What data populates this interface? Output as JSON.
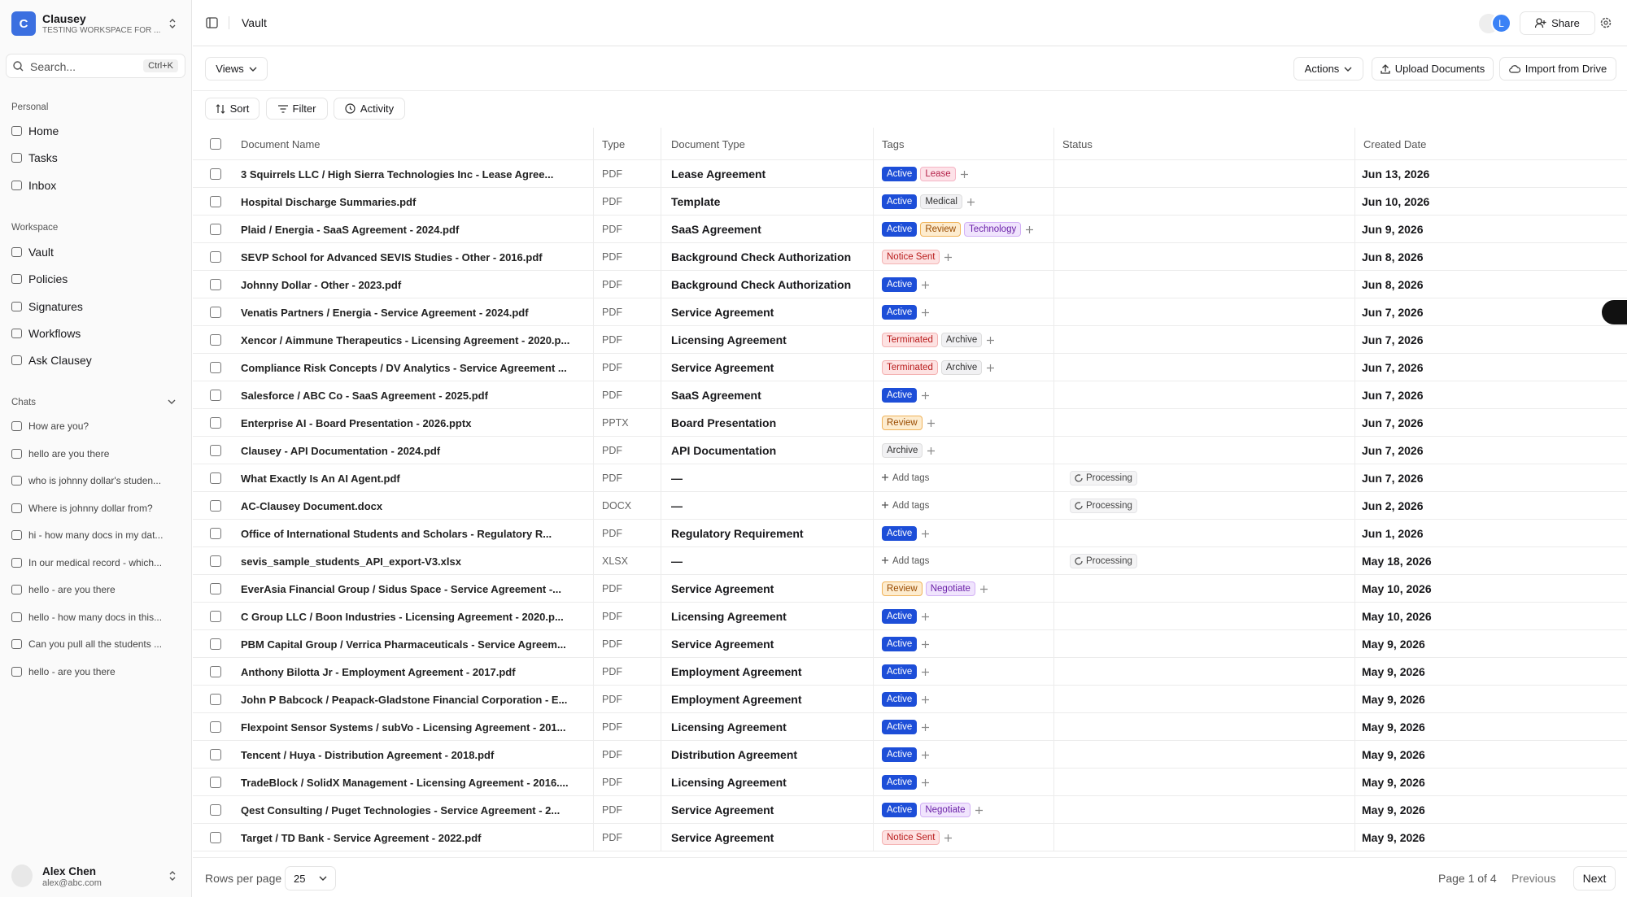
{
  "sidebar": {
    "logo_letter": "C",
    "workspace_name": "Clausey",
    "workspace_subtitle": "TESTING WORKSPACE FOR ...",
    "search": "Search...",
    "shortcut": "Ctrl+K",
    "personal": {
      "title": "Personal",
      "items": [
        "Home",
        "Tasks",
        "Inbox"
      ]
    },
    "workspace": {
      "title": "Workspace",
      "items": [
        "Vault",
        "Policies",
        "Signatures",
        "Workflows",
        "Ask Clausey"
      ]
    },
    "chats": {
      "title": "Chats",
      "items": [
        "How are you?",
        "hello are you there",
        "who is johnny dollar's studen...",
        "Where is johnny dollar from?",
        "hi - how many docs in my dat...",
        "In our medical record - which...",
        "hello - are you there",
        "hello - how many docs in this...",
        "Can you pull all the students ...",
        "hello - are you there"
      ]
    },
    "user": {
      "name": "Alex Chen",
      "email": "alex@abc.com"
    }
  },
  "header": {
    "breadcrumb": "Vault",
    "avatar_letter": "L",
    "share": "Share"
  },
  "toolbar": {
    "views": "Views",
    "actions": "Actions",
    "upload": "Upload Documents",
    "import": "Import from Drive",
    "sort": "Sort",
    "filter": "Filter",
    "activity": "Activity"
  },
  "table": {
    "columns": [
      "Document Name",
      "Type",
      "Document Type",
      "Tags",
      "Status",
      "Created Date"
    ],
    "rows": [
      {
        "name": "3 Squirrels LLC / High Sierra Technologies Inc - Lease Agree...",
        "type": "PDF",
        "doc_type": "Lease Agreement",
        "tags": [
          {
            "label": "Active",
            "tone": "blue"
          },
          {
            "label": "Lease",
            "tone": "pink"
          }
        ],
        "date": "Jun 13, 2026"
      },
      {
        "name": "Hospital Discharge Summaries.pdf",
        "type": "PDF",
        "doc_type": "Template",
        "tags": [
          {
            "label": "Active",
            "tone": "blue"
          },
          {
            "label": "Medical",
            "tone": "gray"
          }
        ],
        "date": "Jun 10, 2026"
      },
      {
        "name": "Plaid / Energia - SaaS Agreement - 2024.pdf",
        "type": "PDF",
        "doc_type": "SaaS Agreement",
        "tags": [
          {
            "label": "Active",
            "tone": "blue"
          },
          {
            "label": "Review",
            "tone": "orange"
          },
          {
            "label": "Technology",
            "tone": "purple"
          }
        ],
        "date": "Jun 9, 2026"
      },
      {
        "name": "SEVP School for Advanced SEVIS Studies - Other - 2016.pdf",
        "type": "PDF",
        "doc_type": "Background Check Authorization",
        "tags": [
          {
            "label": "Notice Sent",
            "tone": "red"
          }
        ],
        "date": "Jun 8, 2026"
      },
      {
        "name": "Johnny Dollar - Other - 2023.pdf",
        "type": "PDF",
        "doc_type": "Background Check Authorization",
        "tags": [
          {
            "label": "Active",
            "tone": "blue"
          }
        ],
        "date": "Jun 8, 2026"
      },
      {
        "name": "Venatis Partners / Energia - Service Agreement - 2024.pdf",
        "type": "PDF",
        "doc_type": "Service Agreement",
        "tags": [
          {
            "label": "Active",
            "tone": "blue"
          }
        ],
        "date": "Jun 7, 2026"
      },
      {
        "name": "Xencor / Aimmune Therapeutics - Licensing Agreement - 2020.p...",
        "type": "PDF",
        "doc_type": "Licensing Agreement",
        "tags": [
          {
            "label": "Terminated",
            "tone": "red"
          },
          {
            "label": "Archive",
            "tone": "gray"
          }
        ],
        "date": "Jun 7, 2026"
      },
      {
        "name": "Compliance Risk Concepts / DV Analytics - Service Agreement ...",
        "type": "PDF",
        "doc_type": "Service Agreement",
        "tags": [
          {
            "label": "Terminated",
            "tone": "red"
          },
          {
            "label": "Archive",
            "tone": "gray"
          }
        ],
        "date": "Jun 7, 2026"
      },
      {
        "name": "Salesforce / ABC Co - SaaS Agreement - 2025.pdf",
        "type": "PDF",
        "doc_type": "SaaS Agreement",
        "tags": [
          {
            "label": "Active",
            "tone": "blue"
          }
        ],
        "date": "Jun 7, 2026"
      },
      {
        "name": "Enterprise AI - Board Presentation - 2026.pptx",
        "type": "PPTX",
        "doc_type": "Board Presentation",
        "tags": [
          {
            "label": "Review",
            "tone": "orange"
          }
        ],
        "date": "Jun 7, 2026"
      },
      {
        "name": "Clausey - API Documentation - 2024.pdf",
        "type": "PDF",
        "doc_type": "API Documentation",
        "tags": [
          {
            "label": "Archive",
            "tone": "gray"
          }
        ],
        "date": "Jun 7, 2026"
      },
      {
        "name": "What Exactly Is An AI Agent.pdf",
        "type": "PDF",
        "doc_type": "—",
        "tags": [],
        "add_tags": "Add tags",
        "status": "Processing",
        "date": "Jun 7, 2026"
      },
      {
        "name": "AC-Clausey Document.docx",
        "type": "DOCX",
        "doc_type": "—",
        "tags": [],
        "add_tags": "Add tags",
        "status": "Processing",
        "date": "Jun 2, 2026"
      },
      {
        "name": "Office of International Students and Scholars - Regulatory R...",
        "type": "PDF",
        "doc_type": "Regulatory Requirement",
        "tags": [
          {
            "label": "Active",
            "tone": "blue"
          }
        ],
        "date": "Jun 1, 2026"
      },
      {
        "name": "sevis_sample_students_API_export-V3.xlsx",
        "type": "XLSX",
        "doc_type": "—",
        "tags": [],
        "add_tags": "Add tags",
        "status": "Processing",
        "date": "May 18, 2026"
      },
      {
        "name": "EverAsia Financial Group / Sidus Space - Service Agreement -...",
        "type": "PDF",
        "doc_type": "Service Agreement",
        "tags": [
          {
            "label": "Review",
            "tone": "orange"
          },
          {
            "label": "Negotiate",
            "tone": "purple"
          }
        ],
        "date": "May 10, 2026"
      },
      {
        "name": "C Group LLC / Boon Industries - Licensing Agreement - 2020.p...",
        "type": "PDF",
        "doc_type": "Licensing Agreement",
        "tags": [
          {
            "label": "Active",
            "tone": "blue"
          }
        ],
        "date": "May 10, 2026"
      },
      {
        "name": "PBM Capital Group / Verrica Pharmaceuticals - Service Agreem...",
        "type": "PDF",
        "doc_type": "Service Agreement",
        "tags": [
          {
            "label": "Active",
            "tone": "blue"
          }
        ],
        "date": "May 9, 2026"
      },
      {
        "name": "Anthony Bilotta Jr - Employment Agreement - 2017.pdf",
        "type": "PDF",
        "doc_type": "Employment Agreement",
        "tags": [
          {
            "label": "Active",
            "tone": "blue"
          }
        ],
        "date": "May 9, 2026"
      },
      {
        "name": "John P Babcock / Peapack-Gladstone Financial Corporation - E...",
        "type": "PDF",
        "doc_type": "Employment Agreement",
        "tags": [
          {
            "label": "Active",
            "tone": "blue"
          }
        ],
        "date": "May 9, 2026"
      },
      {
        "name": "Flexpoint Sensor Systems / subVo - Licensing Agreement - 201...",
        "type": "PDF",
        "doc_type": "Licensing Agreement",
        "tags": [
          {
            "label": "Active",
            "tone": "blue"
          }
        ],
        "date": "May 9, 2026"
      },
      {
        "name": "Tencent / Huya - Distribution Agreement - 2018.pdf",
        "type": "PDF",
        "doc_type": "Distribution Agreement",
        "tags": [
          {
            "label": "Active",
            "tone": "blue"
          }
        ],
        "date": "May 9, 2026"
      },
      {
        "name": "TradeBlock / SolidX Management - Licensing Agreement - 2016....",
        "type": "PDF",
        "doc_type": "Licensing Agreement",
        "tags": [
          {
            "label": "Active",
            "tone": "blue"
          }
        ],
        "date": "May 9, 2026"
      },
      {
        "name": "Qest Consulting / Puget Technologies - Service Agreement - 2...",
        "type": "PDF",
        "doc_type": "Service Agreement",
        "tags": [
          {
            "label": "Active",
            "tone": "blue"
          },
          {
            "label": "Negotiate",
            "tone": "purple"
          }
        ],
        "date": "May 9, 2026"
      },
      {
        "name": "Target / TD Bank - Service Agreement - 2022.pdf",
        "type": "PDF",
        "doc_type": "Service Agreement",
        "tags": [
          {
            "label": "Notice Sent",
            "tone": "red"
          }
        ],
        "date": "May 9, 2026"
      }
    ]
  },
  "footer": {
    "rows_per_page": "Rows per page",
    "rows_per_page_value": 25,
    "page": "Page 1 of 4",
    "previous": "Previous",
    "next": "Next"
  }
}
